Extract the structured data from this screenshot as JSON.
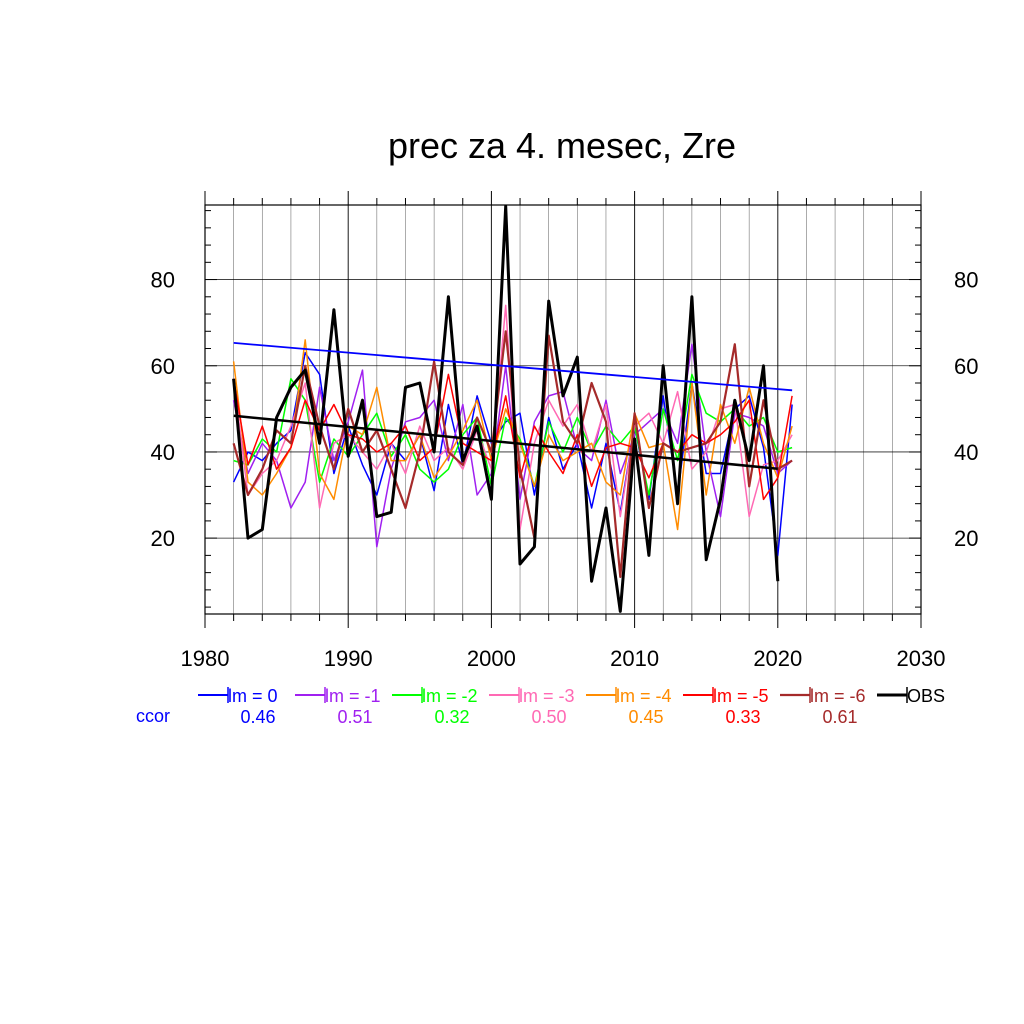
{
  "chart_data": {
    "type": "line",
    "title": "prec za 4. mesec, Zre",
    "xlabel": "",
    "ylabel": "",
    "xlim": [
      1980,
      2030
    ],
    "ylim": [
      2.4,
      97.3
    ],
    "x_ticks": [
      1980,
      1990,
      2000,
      2010,
      2020,
      2030
    ],
    "y_ticks": [
      20,
      40,
      60,
      80
    ],
    "grid": true,
    "legend": "below",
    "ccor_label": "ccor",
    "ccor_color": "#0000ff",
    "x": [
      1982,
      1983,
      1984,
      1985,
      1986,
      1987,
      1988,
      1989,
      1990,
      1991,
      1992,
      1993,
      1994,
      1995,
      1996,
      1997,
      1998,
      1999,
      2000,
      2001,
      2002,
      2003,
      2004,
      2005,
      2006,
      2007,
      2008,
      2009,
      2010,
      2011,
      2012,
      2013,
      2014,
      2015,
      2016,
      2017,
      2018,
      2019,
      2020,
      2021
    ],
    "series": [
      {
        "name": "lm = 0",
        "ccor": "0.46",
        "color": "#0000ff",
        "width": 1.5,
        "values": [
          33,
          40,
          38,
          42,
          45,
          63,
          58,
          35,
          46,
          37,
          30,
          42,
          38,
          44,
          31,
          51,
          37,
          53,
          42,
          47,
          49,
          30,
          48,
          36,
          42,
          27,
          42,
          26,
          46,
          29,
          53,
          30,
          56,
          35,
          35,
          50,
          53,
          41,
          16,
          51
        ]
      },
      {
        "name": "lm = -1",
        "ccor": "0.51",
        "color": "#a020f0",
        "width": 1.5,
        "values": [
          52,
          35,
          42,
          38,
          27,
          33,
          55,
          38,
          47,
          59,
          18,
          36,
          47,
          48,
          52,
          38,
          51,
          30,
          35,
          60,
          29,
          47,
          53,
          54,
          41,
          38,
          52,
          35,
          44,
          47,
          50,
          42,
          65,
          40,
          25,
          49,
          48,
          46,
          35,
          38
        ]
      },
      {
        "name": "lm = -2",
        "ccor": "0.32",
        "color": "#00ff00",
        "width": 1.5,
        "values": [
          38,
          37,
          43,
          40,
          57,
          52,
          33,
          43,
          39,
          44,
          49,
          39,
          44,
          36,
          33,
          36,
          44,
          48,
          32,
          48,
          43,
          32,
          47,
          40,
          48,
          40,
          46,
          42,
          46,
          30,
          50,
          38,
          58,
          49,
          47,
          50,
          46,
          48,
          40,
          41
        ]
      },
      {
        "name": "lm = -3",
        "ccor": "0.50",
        "color": "#ff69b4",
        "width": 1.5,
        "values": [
          57,
          30,
          35,
          38,
          46,
          56,
          27,
          42,
          44,
          40,
          36,
          42,
          35,
          46,
          38,
          41,
          36,
          45,
          36,
          74,
          22,
          42,
          52,
          46,
          51,
          40,
          51,
          25,
          46,
          49,
          42,
          54,
          36,
          40,
          50,
          51,
          25,
          37,
          38,
          44
        ]
      },
      {
        "name": "lm = -4",
        "ccor": "0.45",
        "color": "#ff8c00",
        "width": 1.5,
        "values": [
          61,
          33,
          30,
          35,
          41,
          66,
          35,
          29,
          46,
          44,
          55,
          38,
          38,
          44,
          34,
          39,
          45,
          52,
          38,
          50,
          42,
          32,
          44,
          38,
          40,
          42,
          33,
          30,
          49,
          41,
          42,
          22,
          56,
          30,
          51,
          42,
          55,
          42,
          34,
          46
        ]
      },
      {
        "name": "lm = -5",
        "ccor": "0.33",
        "color": "#ff0000",
        "width": 1.5,
        "values": [
          57,
          37,
          46,
          36,
          41,
          52,
          45,
          51,
          44,
          43,
          40,
          42,
          46,
          38,
          41,
          58,
          42,
          40,
          38,
          53,
          34,
          46,
          40,
          35,
          44,
          32,
          41,
          42,
          41,
          34,
          42,
          40,
          44,
          42,
          44,
          47,
          52,
          29,
          34,
          53
        ]
      },
      {
        "name": "lm = -6",
        "ccor": "0.61",
        "color": "#a52a2a",
        "width": 2.2,
        "values": [
          42,
          30,
          36,
          45,
          42,
          60,
          46,
          36,
          50,
          40,
          45,
          36,
          27,
          40,
          61,
          40,
          37,
          48,
          40,
          68,
          36,
          20,
          67,
          47,
          42,
          56,
          47,
          11,
          49,
          27,
          42,
          40,
          41,
          42,
          47,
          65,
          32,
          52,
          36,
          38
        ]
      },
      {
        "name": "OBS",
        "ccor": "",
        "color": "#000000",
        "width": 3,
        "values": [
          57,
          20,
          22,
          48,
          55,
          59,
          42,
          73,
          39,
          52,
          25,
          26,
          55,
          56,
          40,
          76,
          38,
          46,
          29,
          97,
          14,
          18,
          75,
          53,
          62,
          10,
          27,
          3,
          43,
          16,
          60,
          28,
          76,
          15,
          29,
          52,
          38,
          60,
          10,
          null
        ]
      }
    ],
    "trends": [
      {
        "color": "#0000ff",
        "width": 1.8,
        "x": [
          1982,
          2021
        ],
        "y": [
          65.3,
          54.3
        ]
      },
      {
        "color": "#000000",
        "width": 2.5,
        "x": [
          1982,
          2020
        ],
        "y": [
          48.4,
          36.1
        ]
      }
    ]
  }
}
